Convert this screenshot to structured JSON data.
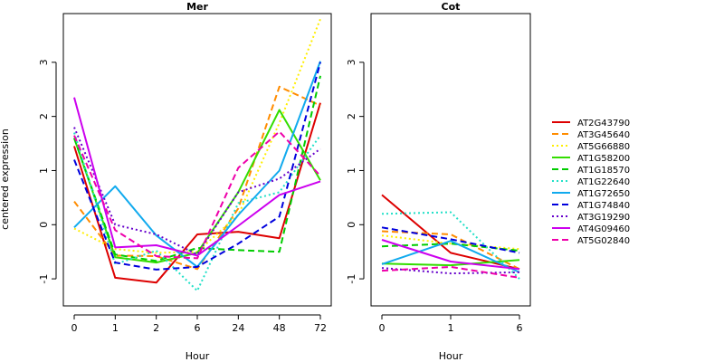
{
  "ylabel": "centered expression",
  "yticks": [
    -1,
    0,
    1,
    2,
    3
  ],
  "colors": {
    "AT2G43790": "#dd0000",
    "AT3G45640": "#ff8c00",
    "AT5G66880": "#ffee00",
    "AT1G58200": "#33dd00",
    "AT1G18570": "#00cc00",
    "AT1G22640": "#22e0c8",
    "AT1G72650": "#11aaee",
    "AT1G74840": "#0000dd",
    "AT3G19290": "#6600cc",
    "AT4G09460": "#cc00ee",
    "AT5G02840": "#ee00aa"
  },
  "chart_data": [
    {
      "type": "line",
      "title": "Mer",
      "xlabel": "Hour",
      "ylabel": "centered expression",
      "categories": [
        "0",
        "1",
        "2",
        "6",
        "24",
        "48",
        "72"
      ],
      "ylim": [
        -1.5,
        3.9
      ],
      "series": [
        {
          "name": "AT2G43790",
          "dash": "solid",
          "values": [
            1.45,
            -0.98,
            -1.07,
            -0.18,
            -0.13,
            -0.25,
            2.25
          ]
        },
        {
          "name": "AT3G45640",
          "dash": "dashed",
          "values": [
            0.43,
            -0.57,
            -0.58,
            -0.82,
            0.3,
            2.55,
            2.2
          ]
        },
        {
          "name": "AT5G66880",
          "dash": "dotted",
          "values": [
            -0.07,
            -0.45,
            -0.52,
            -0.5,
            0.18,
            1.88,
            3.8
          ]
        },
        {
          "name": "AT1G58200",
          "dash": "solid",
          "values": [
            1.6,
            -0.6,
            -0.7,
            -0.52,
            0.6,
            2.12,
            0.82
          ]
        },
        {
          "name": "AT1G18570",
          "dash": "dashed",
          "values": [
            1.6,
            -0.55,
            -0.67,
            -0.43,
            -0.47,
            -0.5,
            2.75
          ]
        },
        {
          "name": "AT1G22640",
          "dash": "dotted",
          "values": [
            1.7,
            -0.73,
            -0.48,
            -1.22,
            0.4,
            0.6,
            1.65
          ]
        },
        {
          "name": "AT1G72650",
          "dash": "solid",
          "values": [
            -0.05,
            0.71,
            -0.2,
            -0.78,
            0.18,
            1.0,
            3.02
          ]
        },
        {
          "name": "AT1G74840",
          "dash": "dashed",
          "values": [
            1.2,
            -0.7,
            -0.83,
            -0.78,
            -0.35,
            0.15,
            3.0
          ]
        },
        {
          "name": "AT3G19290",
          "dash": "dotted",
          "values": [
            1.8,
            0.0,
            -0.18,
            -0.55,
            0.6,
            0.85,
            1.4
          ]
        },
        {
          "name": "AT4G09460",
          "dash": "solid",
          "values": [
            2.35,
            -0.42,
            -0.38,
            -0.57,
            -0.02,
            0.55,
            0.8
          ]
        },
        {
          "name": "AT5G02840",
          "dash": "dashed",
          "values": [
            1.65,
            -0.1,
            -0.58,
            -0.62,
            1.05,
            1.72,
            0.9
          ]
        }
      ]
    },
    {
      "type": "line",
      "title": "Cot",
      "xlabel": "Hour",
      "ylabel": "",
      "categories": [
        "0",
        "1",
        "6"
      ],
      "ylim": [
        -1.5,
        3.9
      ],
      "series": [
        {
          "name": "AT2G43790",
          "dash": "solid",
          "values": [
            0.55,
            -0.52,
            -0.82
          ]
        },
        {
          "name": "AT3G45640",
          "dash": "dashed",
          "values": [
            -0.12,
            -0.18,
            -0.82
          ]
        },
        {
          "name": "AT5G66880",
          "dash": "dotted",
          "values": [
            -0.2,
            -0.35,
            -0.45
          ]
        },
        {
          "name": "AT1G58200",
          "dash": "solid",
          "values": [
            -0.72,
            -0.75,
            -0.65
          ]
        },
        {
          "name": "AT1G18570",
          "dash": "dashed",
          "values": [
            -0.4,
            -0.35,
            -0.48
          ]
        },
        {
          "name": "AT1G22640",
          "dash": "dotted",
          "values": [
            0.2,
            0.23,
            -1.0
          ]
        },
        {
          "name": "AT1G72650",
          "dash": "solid",
          "values": [
            -0.73,
            -0.3,
            -0.88
          ]
        },
        {
          "name": "AT1G74840",
          "dash": "dashed",
          "values": [
            -0.05,
            -0.27,
            -0.52
          ]
        },
        {
          "name": "AT3G19290",
          "dash": "dotted",
          "values": [
            -0.8,
            -0.9,
            -0.88
          ]
        },
        {
          "name": "AT4G09460",
          "dash": "solid",
          "values": [
            -0.28,
            -0.68,
            -0.82
          ]
        },
        {
          "name": "AT5G02840",
          "dash": "dashed",
          "values": [
            -0.85,
            -0.78,
            -0.98
          ]
        }
      ]
    }
  ],
  "legend": {
    "placement": "right",
    "entries": [
      {
        "name": "AT2G43790",
        "dash": "solid"
      },
      {
        "name": "AT3G45640",
        "dash": "dashed"
      },
      {
        "name": "AT5G66880",
        "dash": "dotted"
      },
      {
        "name": "AT1G58200",
        "dash": "solid"
      },
      {
        "name": "AT1G18570",
        "dash": "dashed"
      },
      {
        "name": "AT1G22640",
        "dash": "dotted"
      },
      {
        "name": "AT1G72650",
        "dash": "solid"
      },
      {
        "name": "AT1G74840",
        "dash": "dashed"
      },
      {
        "name": "AT3G19290",
        "dash": "dotted"
      },
      {
        "name": "AT4G09460",
        "dash": "solid"
      },
      {
        "name": "AT5G02840",
        "dash": "dashed"
      }
    ]
  }
}
